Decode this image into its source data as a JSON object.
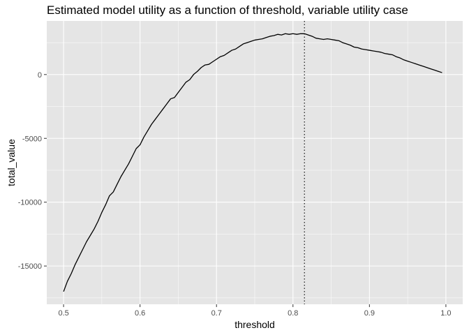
{
  "chart_data": {
    "type": "line",
    "title": "Estimated model utility as a function of threshold, variable utility case",
    "xlabel": "threshold",
    "ylabel": "total_value",
    "xlim": [
      0.478,
      1.022
    ],
    "ylim": [
      -18000,
      4200
    ],
    "x_ticks": [
      0.5,
      0.6,
      0.7,
      0.8,
      0.9,
      1.0
    ],
    "x_tick_labels": [
      "0.5",
      "0.6",
      "0.7",
      "0.8",
      "0.9",
      "1.0"
    ],
    "y_ticks": [
      -15000,
      -10000,
      -5000,
      0
    ],
    "y_tick_labels": [
      "-15000",
      "-10000",
      "-5000",
      "0"
    ],
    "grid": true,
    "background": "#e5e5e5",
    "grid_color": "#ffffff",
    "line_color": "#000000",
    "vline": {
      "x": 0.815,
      "style": "dotted",
      "color": "#000000"
    },
    "series": [
      {
        "x": [
          0.5,
          0.505,
          0.51,
          0.515,
          0.52,
          0.525,
          0.53,
          0.535,
          0.54,
          0.545,
          0.55,
          0.555,
          0.56,
          0.565,
          0.57,
          0.575,
          0.58,
          0.585,
          0.59,
          0.595,
          0.6,
          0.605,
          0.61,
          0.615,
          0.62,
          0.625,
          0.63,
          0.635,
          0.64,
          0.645,
          0.65,
          0.655,
          0.66,
          0.665,
          0.67,
          0.675,
          0.68,
          0.685,
          0.69,
          0.695,
          0.7,
          0.705,
          0.71,
          0.715,
          0.72,
          0.725,
          0.73,
          0.735,
          0.74,
          0.745,
          0.75,
          0.755,
          0.76,
          0.765,
          0.77,
          0.775,
          0.78,
          0.785,
          0.79,
          0.795,
          0.8,
          0.805,
          0.81,
          0.815,
          0.82,
          0.825,
          0.83,
          0.835,
          0.84,
          0.845,
          0.85,
          0.855,
          0.86,
          0.865,
          0.87,
          0.875,
          0.88,
          0.885,
          0.89,
          0.895,
          0.9,
          0.905,
          0.91,
          0.915,
          0.92,
          0.925,
          0.93,
          0.935,
          0.94,
          0.945,
          0.95,
          0.955,
          0.96,
          0.965,
          0.97,
          0.975,
          0.98,
          0.985,
          0.99,
          0.995
        ],
        "values": [
          -17000,
          -16200,
          -15600,
          -14900,
          -14300,
          -13700,
          -13100,
          -12600,
          -12100,
          -11500,
          -10800,
          -10200,
          -9500,
          -9200,
          -8600,
          -8000,
          -7500,
          -7000,
          -6400,
          -5800,
          -5500,
          -4900,
          -4400,
          -3900,
          -3500,
          -3100,
          -2700,
          -2300,
          -1900,
          -1800,
          -1400,
          -1000,
          -600,
          -400,
          0,
          250,
          550,
          750,
          800,
          1000,
          1200,
          1400,
          1500,
          1700,
          1900,
          2000,
          2200,
          2400,
          2500,
          2600,
          2700,
          2750,
          2800,
          2900,
          3000,
          3050,
          3150,
          3100,
          3200,
          3150,
          3200,
          3150,
          3200,
          3200,
          3100,
          3000,
          2850,
          2800,
          2750,
          2800,
          2750,
          2700,
          2650,
          2500,
          2400,
          2300,
          2150,
          2100,
          2000,
          1950,
          1900,
          1850,
          1800,
          1750,
          1650,
          1600,
          1550,
          1400,
          1300,
          1150,
          1050,
          950,
          850,
          750,
          650,
          550,
          450,
          350,
          250,
          150
        ]
      }
    ]
  }
}
